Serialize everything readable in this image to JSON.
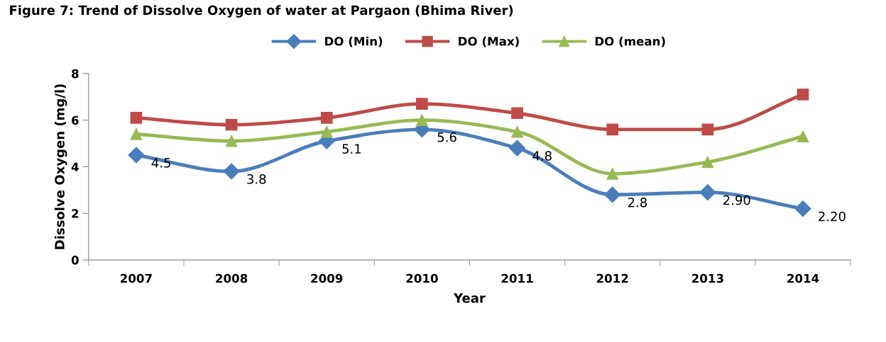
{
  "chart_data": {
    "type": "line",
    "title": "Figure 7: Trend of Dissolve Oxygen of water at Pargaon (Bhima River)",
    "xlabel": "Year",
    "ylabel": "Dissolve Oxygen (mg/l)",
    "categories": [
      "2007",
      "2008",
      "2009",
      "2010",
      "2011",
      "2012",
      "2013",
      "2014"
    ],
    "series": [
      {
        "name": "DO (Min)",
        "color": "#4a7ebb",
        "marker": "diamond",
        "values": [
          4.5,
          3.8,
          5.1,
          5.6,
          4.8,
          2.8,
          2.9,
          2.2
        ],
        "value_labels": [
          "4.5",
          "3.8",
          "5.1",
          "5.6",
          "4.8",
          "2.8",
          "2.90",
          "2.20"
        ]
      },
      {
        "name": "DO (Max)",
        "color": "#be4b48",
        "marker": "square",
        "values": [
          6.1,
          5.8,
          6.1,
          6.7,
          6.3,
          5.6,
          5.6,
          7.1
        ]
      },
      {
        "name": "DO (mean)",
        "color": "#98b954",
        "marker": "triangle",
        "values": [
          5.4,
          5.1,
          5.5,
          6.0,
          5.5,
          3.7,
          4.2,
          5.3
        ]
      }
    ],
    "ylim": [
      0,
      8
    ],
    "yticks": [
      0,
      2,
      4,
      6,
      8
    ],
    "grid": false,
    "legend": "top",
    "line_style": "solid"
  }
}
